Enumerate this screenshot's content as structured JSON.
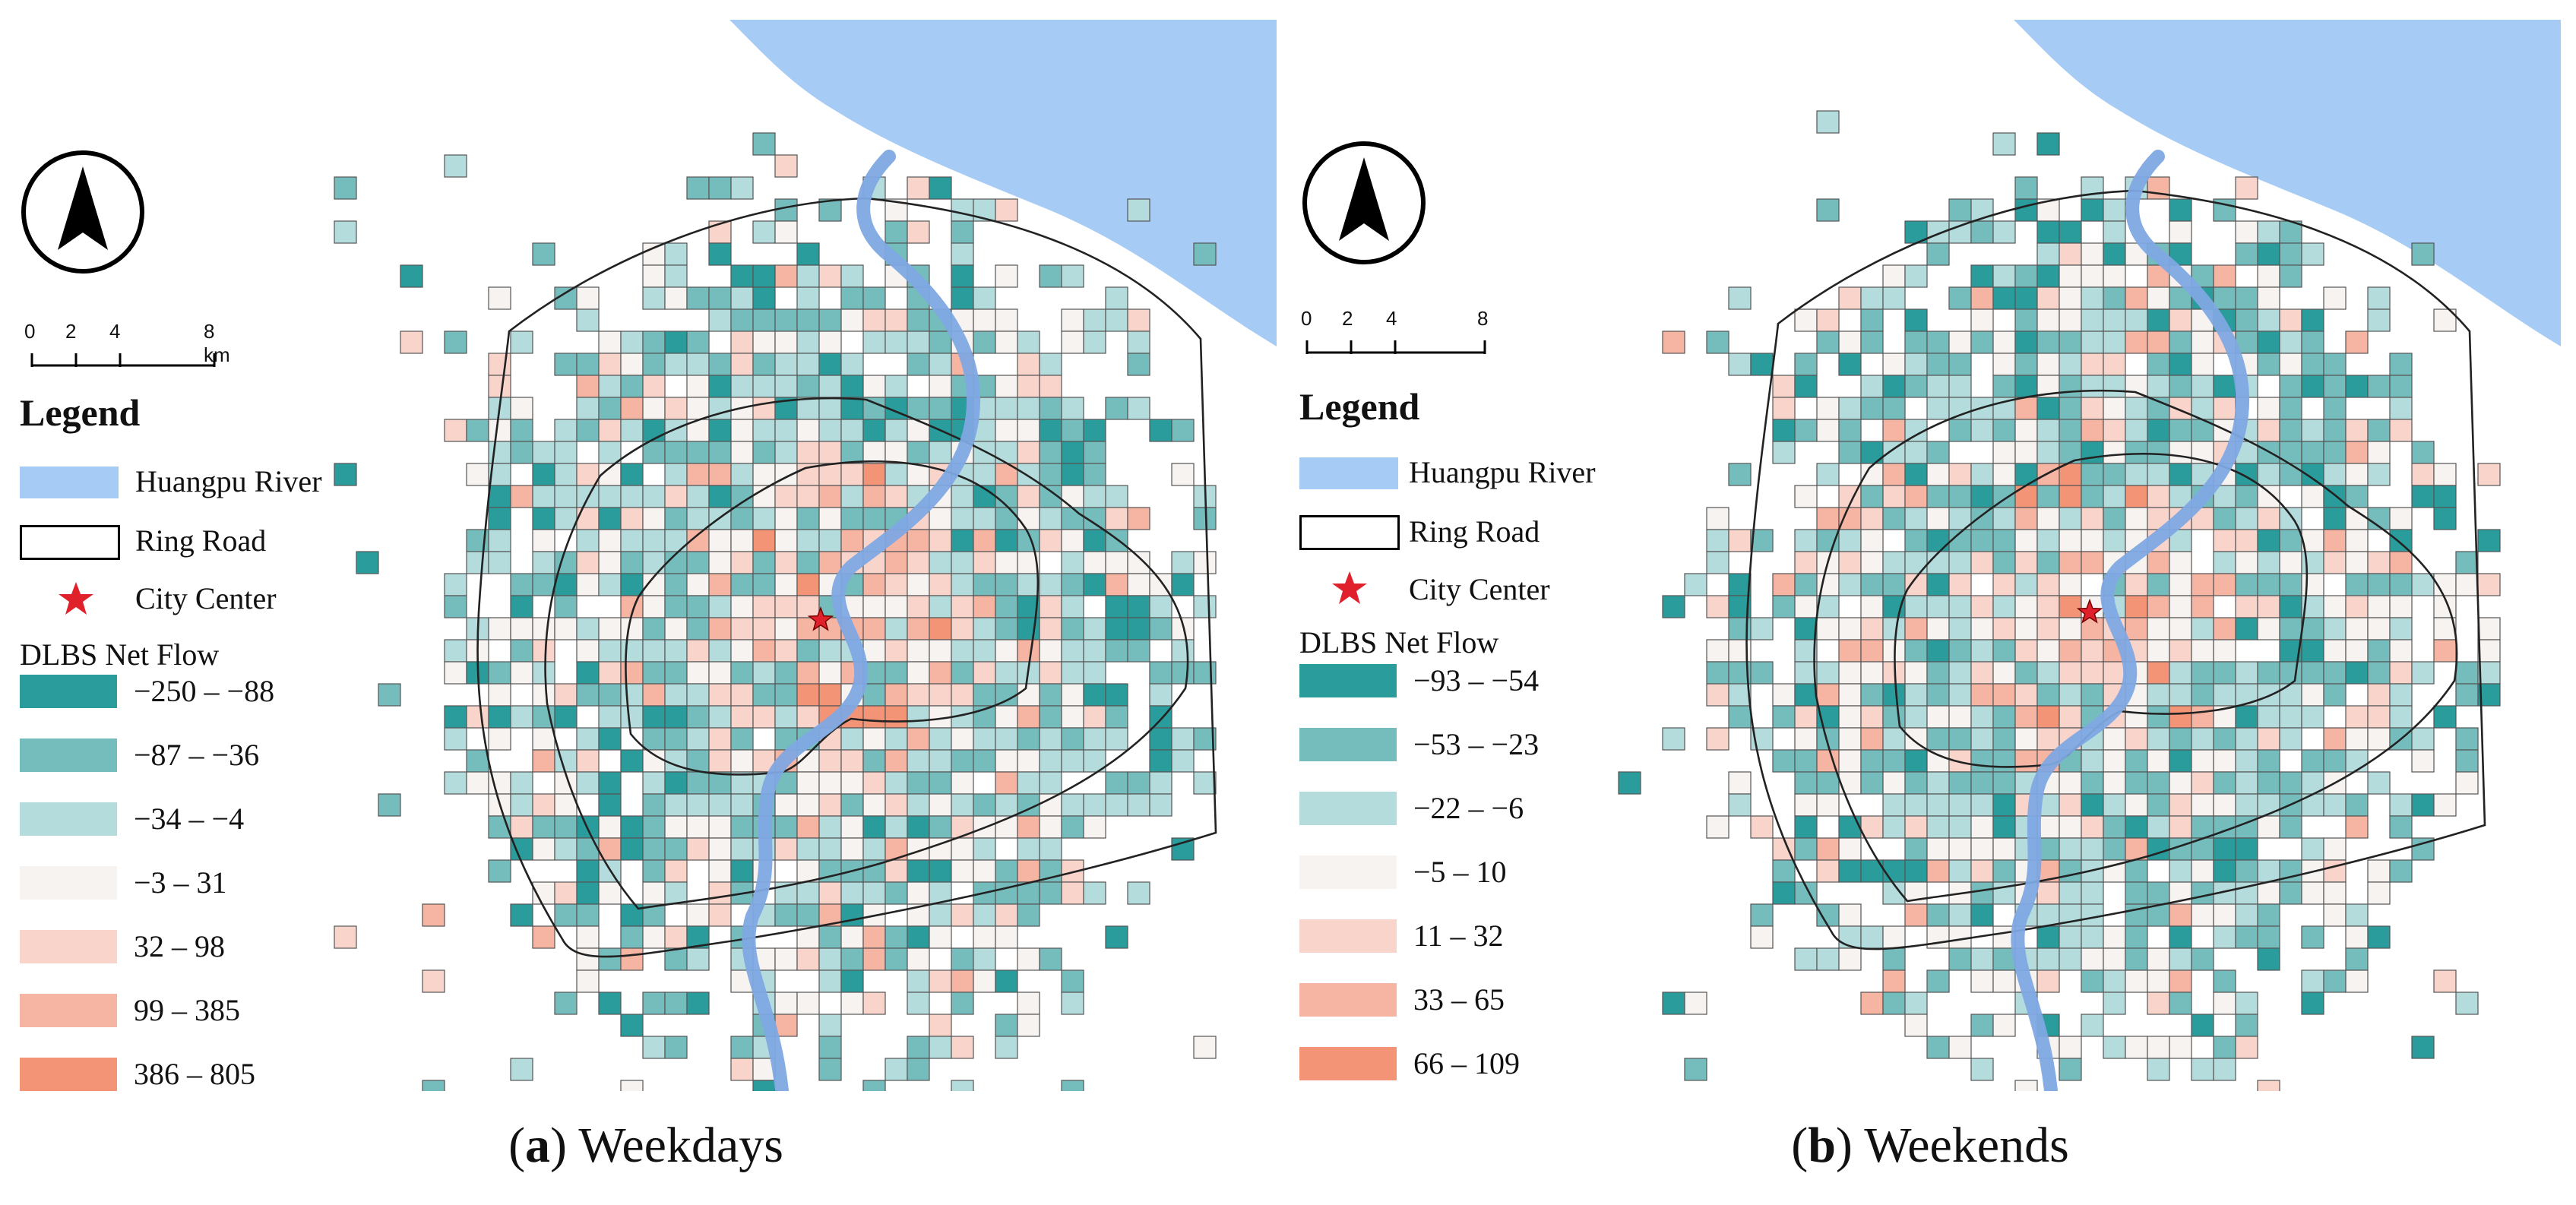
{
  "panels": [
    {
      "id": "a",
      "caption_letter": "a",
      "caption_text": "Weekdays",
      "scale": {
        "ticks": [
          "0",
          "2",
          "4",
          "8 km"
        ]
      },
      "legend": {
        "title": "Legend",
        "river_label": "Huangpu River",
        "ring_label": "Ring Road",
        "center_label": "City Center",
        "flow_title": "DLBS Net Flow",
        "classes": [
          {
            "label": "−250 – −88",
            "color": "#2b9c9c"
          },
          {
            "label": "−87 – −36",
            "color": "#75bdbd"
          },
          {
            "label": "−34 – −4",
            "color": "#b4dcdc"
          },
          {
            "label": "−3 – 31",
            "color": "#f6f3f1"
          },
          {
            "label": "32 – 98",
            "color": "#f8d4cb"
          },
          {
            "label": "99 – 385",
            "color": "#f6b4a3"
          },
          {
            "label": "386 – 805",
            "color": "#f39477"
          }
        ]
      }
    },
    {
      "id": "b",
      "caption_letter": "b",
      "caption_text": "Weekends",
      "scale": {
        "ticks": [
          "0",
          "2",
          "4",
          "8"
        ]
      },
      "legend": {
        "title": "Legend",
        "river_label": "Huangpu River",
        "ring_label": "Ring Road",
        "center_label": "City Center",
        "flow_title": "DLBS Net Flow",
        "classes": [
          {
            "label": "−93 – −54",
            "color": "#2b9c9c"
          },
          {
            "label": "−53 – −23",
            "color": "#75bdbd"
          },
          {
            "label": "−22 – −6",
            "color": "#b4dcdc"
          },
          {
            "label": "−5 – 10",
            "color": "#f6f3f1"
          },
          {
            "label": "11 – 32",
            "color": "#f8d4cb"
          },
          {
            "label": "33 – 65",
            "color": "#f6b4a3"
          },
          {
            "label": "66 – 109",
            "color": "#f39477"
          }
        ]
      }
    }
  ],
  "colors": {
    "river": "#a6ccf6",
    "river_line": "#7fa8e3",
    "ring": "#222222",
    "center": "#e0202a",
    "grid_stroke": "#555555"
  }
}
